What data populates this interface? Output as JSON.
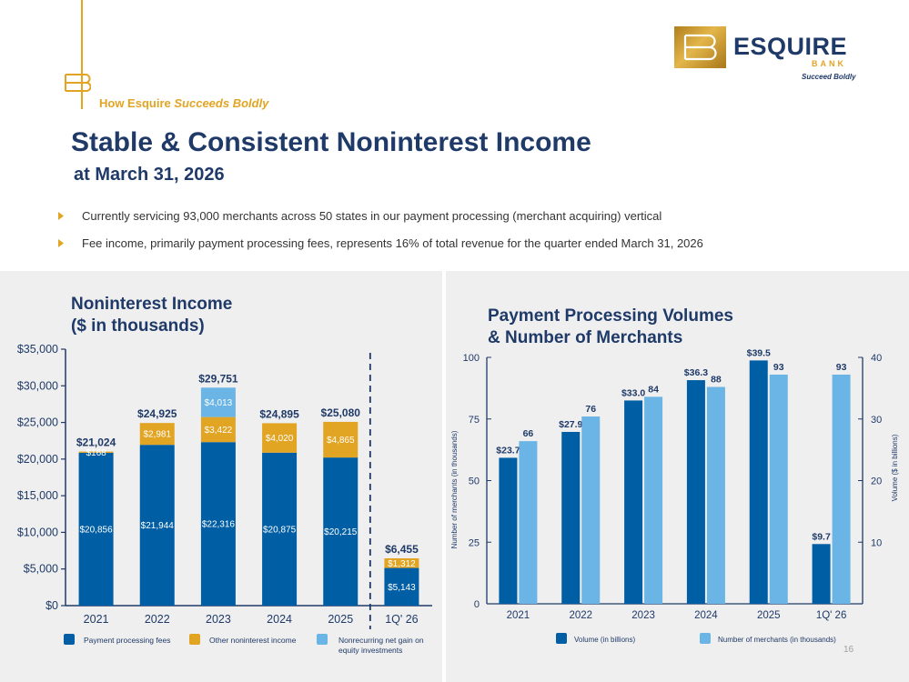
{
  "header": {
    "tagline_prefix": "How Esquire",
    "tagline_emph": "Succeeds Boldly",
    "logo_word": "ESQUIRE",
    "logo_bank": "BANK",
    "logo_sub": "Succeed Boldly"
  },
  "title": "Stable & Consistent Noninterest Income",
  "subtitle": "at March 31, 2026",
  "bullets": [
    "Currently servicing 93,000 merchants across 50 states in our payment processing (merchant acquiring) vertical",
    "Fee income, primarily payment processing fees, represents 16% of total revenue for the quarter ended March 31, 2026"
  ],
  "colors": {
    "navy": "#1f3a68",
    "gold": "#e2a423",
    "dark_blue": "#005ea4",
    "light_blue": "#6ab4e6"
  },
  "page_number": "16",
  "chart_data": [
    {
      "type": "bar",
      "stacked": true,
      "title_line1": "Noninterest Income",
      "title_line2": "($ in thousands)",
      "categories": [
        "2021",
        "2022",
        "2023",
        "2024",
        "2025",
        "1Q' 26"
      ],
      "y_ticks": [
        "$0",
        "$5,000",
        "$10,000",
        "$15,000",
        "$20,000",
        "$25,000",
        "$30,000",
        "$35,000"
      ],
      "ylim": [
        0,
        35000
      ],
      "divider_after_index": 4,
      "series": [
        {
          "name": "Payment processing fees",
          "color": "#005ea4",
          "values": [
            20856,
            21944,
            22316,
            20875,
            20215,
            5143
          ],
          "labels": [
            "$20,856",
            "$21,944",
            "$22,316",
            "$20,875",
            "$20,215",
            "$5,143"
          ]
        },
        {
          "name": "Other noninterest income",
          "color": "#e2a423",
          "values": [
            168,
            2981,
            3422,
            4020,
            4865,
            1312
          ],
          "labels": [
            "$168",
            "$2,981",
            "$3,422",
            "$4,020",
            "$4,865",
            "$1,312"
          ]
        },
        {
          "name": "Nonrecurring net gain on equity investments",
          "color": "#6ab4e6",
          "values": [
            0,
            0,
            4013,
            0,
            0,
            0
          ],
          "labels": [
            "",
            "",
            "$4,013",
            "",
            "",
            ""
          ]
        }
      ],
      "totals": [
        "$21,024",
        "$24,925",
        "$29,751",
        "$24,895",
        "$25,080",
        "$6,455"
      ],
      "legend": [
        {
          "label": "Payment processing fees",
          "color": "#005ea4"
        },
        {
          "label": "Other noninterest income",
          "color": "#e2a423"
        },
        {
          "label_line1": "Nonrecurring net gain on",
          "label_line2": "equity investments",
          "color": "#6ab4e6"
        }
      ]
    },
    {
      "type": "bar",
      "title_line1": "Payment Processing Volumes",
      "title_line2": "& Number of Merchants",
      "categories": [
        "2021",
        "2022",
        "2023",
        "2024",
        "2025",
        "1Q' 26"
      ],
      "left_axis": {
        "label": "Number of merchants (in thousands)",
        "ticks": [
          "0",
          "25",
          "50",
          "75",
          "100"
        ],
        "ylim": [
          0,
          100
        ]
      },
      "right_axis": {
        "label": "Volume ($ in billions)",
        "ticks": [
          "10",
          "20",
          "30",
          "40"
        ],
        "ylim": [
          0,
          40
        ]
      },
      "series": [
        {
          "name": "Volume (in billions)",
          "axis": "right",
          "color": "#005ea4",
          "values": [
            23.7,
            27.9,
            33.0,
            36.3,
            39.5,
            9.7
          ],
          "labels": [
            "$23.7",
            "$27.9",
            "$33.0",
            "$36.3",
            "$39.5",
            "$9.7"
          ]
        },
        {
          "name": "Number of merchants (in thousands)",
          "axis": "left",
          "color": "#6ab4e6",
          "values": [
            66,
            76,
            84,
            88,
            93,
            93
          ],
          "labels": [
            "66",
            "76",
            "84",
            "88",
            "93",
            "93"
          ]
        }
      ]
    }
  ]
}
